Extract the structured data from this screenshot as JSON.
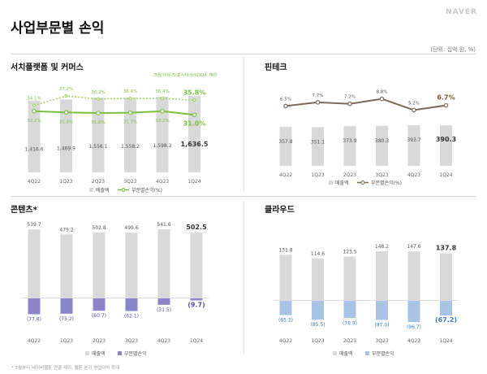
{
  "page": {
    "title": "사업부문별 손익",
    "brand": "NAVER",
    "unit": "(단위: 십억 원, %)",
    "footnote": "* 3월부터 네이버웹툰 연결 제외, 웹툰 분기 영업이익 확대"
  },
  "colors": {
    "bar_gray": "#d9d9d9",
    "green": "#7ac143",
    "green_dotted": "#a8d66b",
    "brown": "#7b6a58",
    "purple": "#8c84c9",
    "blue_bar": "#a9c3e4",
    "blue_text": "#3b7fc4"
  },
  "chart_data": [
    {
      "type": "bar",
      "title": "서치플랫폼 및 커머스",
      "note": "크림/아뮤즈/포시마크/SODA 제외",
      "categories": [
        "4Q22",
        "1Q23",
        "2Q23",
        "3Q23",
        "4Q23",
        "1Q24"
      ],
      "series": [
        {
          "name": "매출액",
          "type": "bar",
          "values": [
            1416.6,
            1469.9,
            1556.1,
            1558.2,
            1598.3,
            1636.5
          ],
          "labels": [
            "1,416.6",
            "1,469.9",
            "1,556.1",
            "1,558.2",
            "1,598.3",
            "1,636.5"
          ]
        },
        {
          "name": "부문별손익(%)",
          "type": "line",
          "values": [
            32.2,
            31.8,
            31.6,
            31.7,
            32.2,
            31.0
          ],
          "labels": [
            "32.2%",
            "31.8%",
            "31.6%",
            "31.7%",
            "32.2%",
            "31.0%"
          ]
        },
        {
          "name": "",
          "type": "line-dotted",
          "values": [
            34.1,
            37.2,
            36.2,
            36.4,
            36.4,
            35.8
          ],
          "labels": [
            "34.1%",
            "37.2%",
            "36.2%",
            "36.4%",
            "36.4%",
            "35.8%"
          ]
        }
      ],
      "legend": [
        "매출액",
        "부문별손익(%)"
      ]
    },
    {
      "type": "bar",
      "title": "핀테크",
      "categories": [
        "4Q22",
        "1Q23",
        "2Q23",
        "3Q23",
        "4Q23",
        "1Q24"
      ],
      "series": [
        {
          "name": "매출액",
          "type": "bar",
          "values": [
            357.8,
            351.1,
            373.9,
            380.3,
            393.7,
            390.3
          ],
          "labels": [
            "357.8",
            "351.1",
            "373.9",
            "380.3",
            "393.7",
            "390.3"
          ]
        },
        {
          "name": "부문별손익(%)",
          "type": "line",
          "values": [
            6.5,
            7.7,
            7.2,
            8.8,
            5.2,
            6.7
          ],
          "labels": [
            "6.5%",
            "7.7%",
            "7.2%",
            "8.8%",
            "5.2%",
            "6.7%"
          ]
        }
      ],
      "legend": [
        "매출액",
        "부문별손익(%)"
      ]
    },
    {
      "type": "bar",
      "title": "콘텐츠*",
      "categories": [
        "4Q22",
        "1Q23",
        "2Q23",
        "3Q23",
        "4Q23",
        "1Q24"
      ],
      "series": [
        {
          "name": "매출액",
          "type": "bar",
          "values": [
            539.7,
            479.2,
            502.8,
            499.6,
            541.6,
            502.5
          ],
          "labels": [
            "539.7",
            "479.2",
            "502.8",
            "499.6",
            "541.6",
            "502.5"
          ]
        },
        {
          "name": "부문별손익",
          "type": "bar-negative",
          "values": [
            -77.8,
            -75.2,
            -60.7,
            -62.1,
            -31.5,
            -9.7
          ],
          "labels": [
            "(77.8)",
            "(75.2)",
            "(60.7)",
            "(62.1)",
            "(31.5)",
            "(9.7)"
          ]
        }
      ],
      "legend": [
        "매출액",
        "부문별손익"
      ]
    },
    {
      "type": "bar",
      "title": "클라우드",
      "categories": [
        "4Q22",
        "1Q23",
        "2Q23",
        "3Q23",
        "4Q23",
        "1Q24"
      ],
      "series": [
        {
          "name": "매출액",
          "type": "bar",
          "values": [
            131.8,
            114.6,
            123.5,
            148.2,
            147.6,
            137.8
          ],
          "labels": [
            "131.8",
            "114.6",
            "123.5",
            "148.2",
            "147.6",
            "137.8"
          ]
        },
        {
          "name": "부문별손익",
          "type": "bar-negative",
          "values": [
            -65.2,
            -85.5,
            -78.9,
            -87.0,
            -96.7,
            -67.2
          ],
          "labels": [
            "(65.2)",
            "(85.5)",
            "(78.9)",
            "(87.0)",
            "(96.7)",
            "(67.2)"
          ]
        }
      ],
      "legend": [
        "매출액",
        "부문별손익"
      ]
    }
  ]
}
